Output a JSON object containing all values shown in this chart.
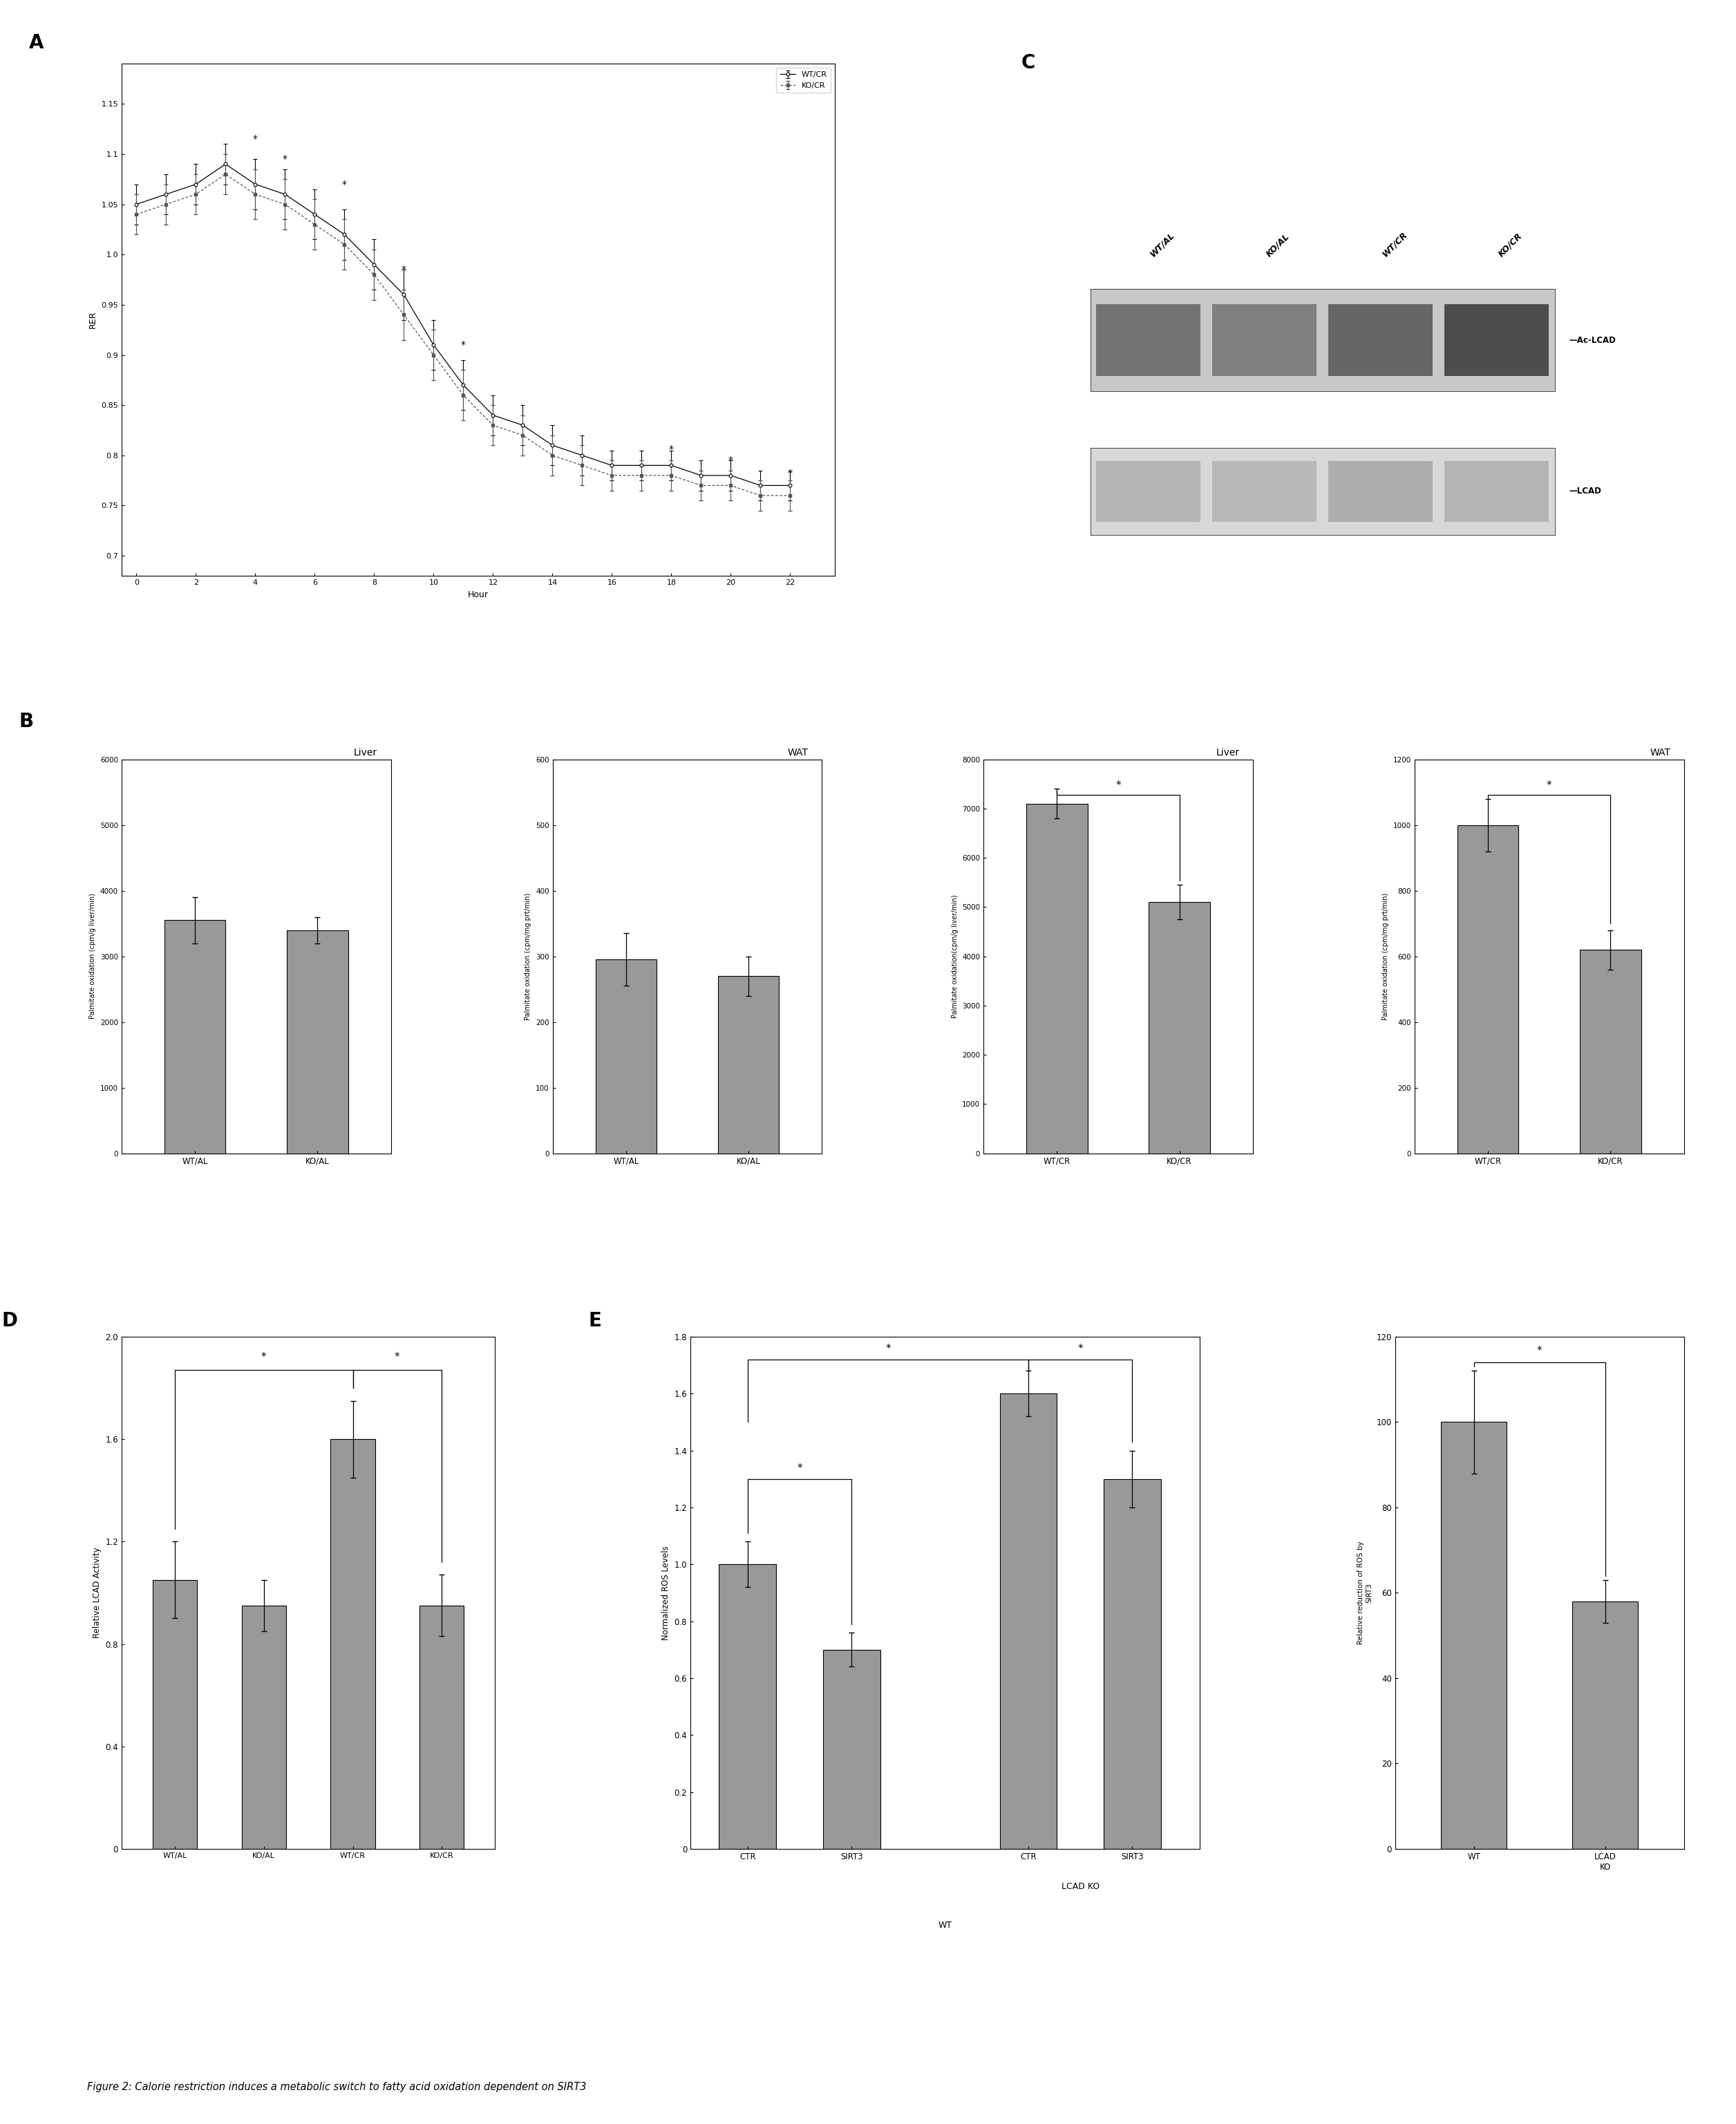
{
  "panel_A": {
    "xlabel": "Hour",
    "ylabel": "RER",
    "yticks": [
      0.7,
      0.75,
      0.8,
      0.85,
      0.9,
      0.95,
      1.0,
      1.05,
      1.1,
      1.15
    ],
    "xticks": [
      0,
      2,
      4,
      6,
      8,
      10,
      12,
      14,
      16,
      18,
      20,
      22
    ],
    "ylim": [
      0.68,
      1.19
    ],
    "xlim": [
      -0.5,
      23.5
    ],
    "wt_cr_x": [
      0,
      1,
      2,
      3,
      4,
      5,
      6,
      7,
      8,
      9,
      10,
      11,
      12,
      13,
      14,
      15,
      16,
      17,
      18,
      19,
      20,
      21,
      22
    ],
    "wt_cr_y": [
      1.05,
      1.06,
      1.07,
      1.09,
      1.07,
      1.06,
      1.04,
      1.02,
      0.99,
      0.96,
      0.91,
      0.87,
      0.84,
      0.83,
      0.81,
      0.8,
      0.79,
      0.79,
      0.79,
      0.78,
      0.78,
      0.77,
      0.77
    ],
    "wt_cr_err": [
      0.02,
      0.02,
      0.02,
      0.02,
      0.025,
      0.025,
      0.025,
      0.025,
      0.025,
      0.025,
      0.025,
      0.025,
      0.02,
      0.02,
      0.02,
      0.02,
      0.015,
      0.015,
      0.015,
      0.015,
      0.015,
      0.015,
      0.015
    ],
    "ko_cr_x": [
      0,
      1,
      2,
      3,
      4,
      5,
      6,
      7,
      8,
      9,
      10,
      11,
      12,
      13,
      14,
      15,
      16,
      17,
      18,
      19,
      20,
      21,
      22
    ],
    "ko_cr_y": [
      1.04,
      1.05,
      1.06,
      1.08,
      1.06,
      1.05,
      1.03,
      1.01,
      0.98,
      0.94,
      0.9,
      0.86,
      0.83,
      0.82,
      0.8,
      0.79,
      0.78,
      0.78,
      0.78,
      0.77,
      0.77,
      0.76,
      0.76
    ],
    "ko_cr_err": [
      0.02,
      0.02,
      0.02,
      0.02,
      0.025,
      0.025,
      0.025,
      0.025,
      0.025,
      0.025,
      0.025,
      0.025,
      0.02,
      0.02,
      0.02,
      0.02,
      0.015,
      0.015,
      0.015,
      0.015,
      0.015,
      0.015,
      0.015
    ],
    "star_x": [
      4,
      5,
      7,
      9,
      11,
      18,
      20,
      22
    ],
    "star_y": [
      1.115,
      1.095,
      1.07,
      0.985,
      0.91,
      0.806,
      0.795,
      0.782
    ],
    "legend_labels": [
      "WT/CR",
      "KO/CR"
    ]
  },
  "panel_C": {
    "col_labels": [
      "WT/AL",
      "KO/AL",
      "WT/CR",
      "KO/CR"
    ],
    "blot1_label": "Ac-LCAD",
    "blot2_label": "LCAD",
    "ac_lcad_gray": [
      0.45,
      0.5,
      0.4,
      0.3
    ],
    "lcad_gray": [
      0.7,
      0.72,
      0.68,
      0.7
    ]
  },
  "panel_B": {
    "subpanels": [
      {
        "title": "Liver",
        "ylabel": "Palmitate oxidation (cpm/g liver/min)",
        "categories": [
          "WT/AL",
          "KO/AL"
        ],
        "values": [
          3550,
          3400
        ],
        "errors": [
          350,
          200
        ],
        "ylim": [
          0,
          6000
        ],
        "yticks": [
          0,
          1000,
          2000,
          3000,
          4000,
          5000,
          6000
        ],
        "significance": null
      },
      {
        "title": "WAT",
        "ylabel": "Palmitate oxidation (cpm/mg prt/min)",
        "categories": [
          "WT/AL",
          "KO/AL"
        ],
        "values": [
          295,
          270
        ],
        "errors": [
          40,
          30
        ],
        "ylim": [
          0,
          600
        ],
        "yticks": [
          0,
          100,
          200,
          300,
          400,
          500,
          600
        ],
        "significance": null
      },
      {
        "title": "Liver",
        "ylabel": "Palmitate oxidation(cpm/g liver/min)",
        "categories": [
          "WT/CR",
          "KO/CR"
        ],
        "values": [
          7100,
          5100
        ],
        "errors": [
          300,
          350
        ],
        "ylim": [
          0,
          8000
        ],
        "yticks": [
          0,
          1000,
          2000,
          3000,
          4000,
          5000,
          6000,
          7000,
          8000
        ],
        "significance": "*"
      },
      {
        "title": "WAT",
        "ylabel": "Palmitate oxidation (cpm/mg prt/min)",
        "categories": [
          "WT/CR",
          "KO/CR"
        ],
        "values": [
          1000,
          620
        ],
        "errors": [
          80,
          60
        ],
        "ylim": [
          0,
          1200
        ],
        "yticks": [
          0,
          200,
          400,
          600,
          800,
          1000,
          1200
        ],
        "significance": "*"
      }
    ]
  },
  "panel_D": {
    "ylabel": "Relative LCAD Activity",
    "categories": [
      "WT/AL",
      "KO/AL",
      "WT/CR",
      "KO/CR"
    ],
    "values": [
      1.05,
      0.95,
      1.6,
      0.95
    ],
    "errors": [
      0.15,
      0.1,
      0.15,
      0.12
    ],
    "ylim": [
      0,
      2.0
    ],
    "yticks": [
      0,
      0.4,
      0.8,
      1.2,
      1.6,
      2.0
    ]
  },
  "panel_E1": {
    "ylabel": "Normalized ROS Levels",
    "categories": [
      "CTR",
      "SIRT3",
      "CTR",
      "SIRT3"
    ],
    "group_labels": [
      "WT",
      "LCAD KO"
    ],
    "values": [
      1.0,
      0.7,
      1.6,
      1.3
    ],
    "errors": [
      0.08,
      0.06,
      0.08,
      0.1
    ],
    "ylim": [
      0,
      1.8
    ],
    "yticks": [
      0,
      0.2,
      0.4,
      0.6,
      0.8,
      1.0,
      1.2,
      1.4,
      1.6,
      1.8
    ]
  },
  "panel_E2": {
    "ylabel": "Relative reduction of ROS by\nSIRT3",
    "categories": [
      "WT",
      "LCAD\nKO"
    ],
    "values": [
      100,
      58
    ],
    "errors": [
      12,
      5
    ],
    "ylim": [
      0,
      120
    ],
    "yticks": [
      0,
      20,
      40,
      60,
      80,
      100,
      120
    ]
  },
  "figure_label": "Figure 2: Calorie restriction induces a metabolic switch to fatty acid oxidation dependent on SIRT3",
  "bar_color": "#999999"
}
